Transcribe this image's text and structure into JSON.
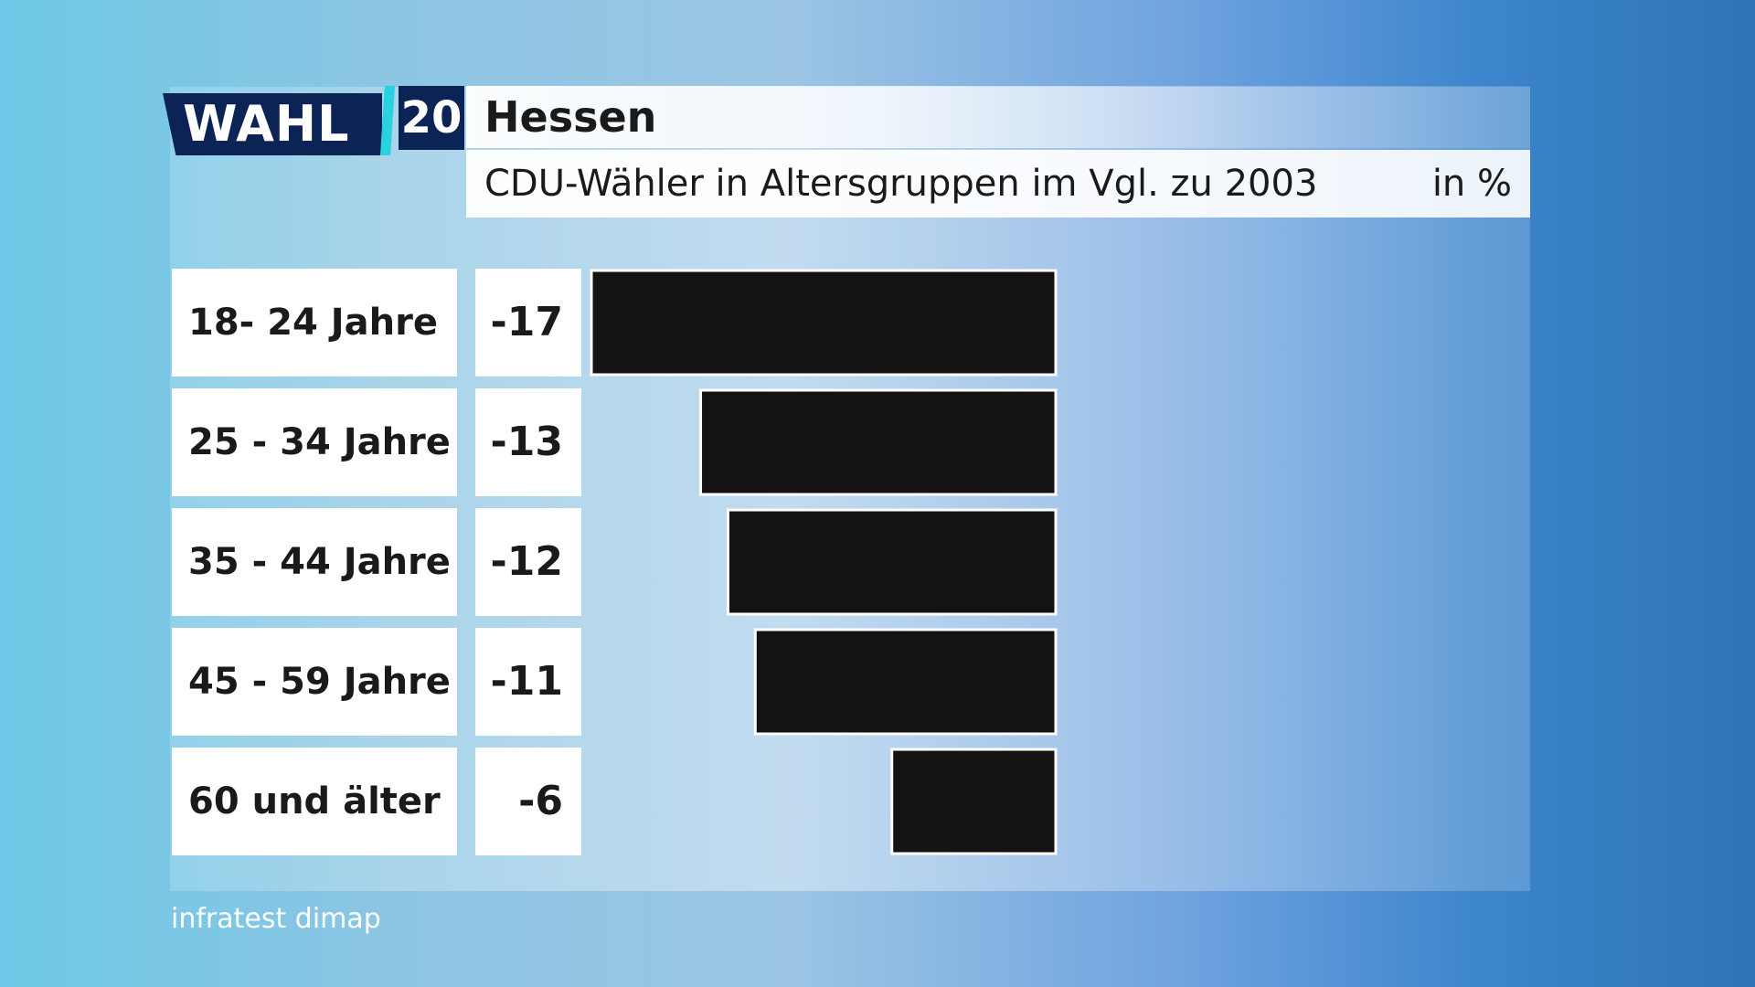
{
  "logo": {
    "wahl_text": "WAHL",
    "number_text": "20"
  },
  "header": {
    "title": "Hessen",
    "subtitle": "CDU-Wähler in Altersgruppen im Vgl. zu 2003",
    "unit": "in %"
  },
  "source": "infratest dimap",
  "colors": {
    "bar": "#141212",
    "logo_navy": "#0c2356",
    "logo_accent": "#28d3df"
  },
  "chart_data": {
    "type": "bar",
    "orientation": "horizontal",
    "categories": [
      "18- 24 Jahre",
      "25 - 34 Jahre",
      "35 - 44 Jahre",
      "45 - 59 Jahre",
      "60 und älter"
    ],
    "values": [
      -17,
      -13,
      -12,
      -11,
      -6
    ],
    "value_labels": [
      "-17",
      "-13",
      "-12",
      "-11",
      "-6"
    ],
    "title": "CDU-Wähler in Altersgruppen im Vgl. zu 2003",
    "unit": "in %",
    "xlim": [
      -17,
      0
    ],
    "grid": false
  }
}
